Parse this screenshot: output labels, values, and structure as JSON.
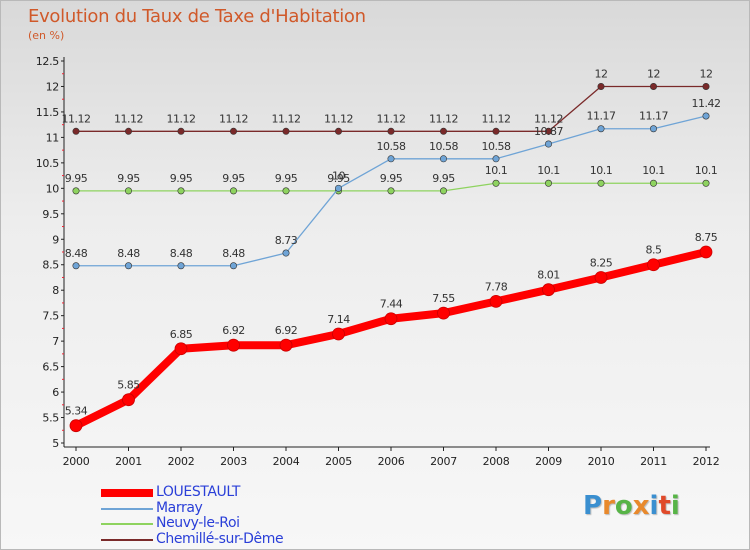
{
  "title": "Evolution du Taux de Taxe d'Habitation",
  "subtitle": "(en %)",
  "logo": {
    "text": "Proxiti",
    "colors": [
      "#3a8fd0",
      "#e8892c",
      "#57b447",
      "#e8892c",
      "#3a8fd0",
      "#e04a2a",
      "#57b447"
    ]
  },
  "chart_data": {
    "type": "line",
    "x": [
      "2000",
      "2001",
      "2002",
      "2003",
      "2004",
      "2005",
      "2006",
      "2007",
      "2008",
      "2009",
      "2010",
      "2011",
      "2012"
    ],
    "ylim": [
      5,
      12.5
    ],
    "yticks": [
      "5",
      "5.5",
      "6",
      "6.5",
      "7",
      "7.5",
      "8",
      "8.5",
      "9",
      "9.5",
      "10",
      "10.5",
      "11",
      "11.5",
      "12",
      "12.5"
    ],
    "grid": false,
    "legend_position": "bottom-left",
    "series": [
      {
        "name": "LOUESTAULT",
        "color": "#ff0000",
        "values": [
          5.34,
          5.85,
          6.85,
          6.92,
          6.92,
          7.14,
          7.44,
          7.55,
          7.78,
          8.01,
          8.25,
          8.5,
          8.75
        ],
        "labels": [
          "5.34",
          "5.85",
          "6.85",
          "6.92",
          "6.92",
          "7.14",
          "7.44",
          "7.55",
          "7.78",
          "8.01",
          "8.25",
          "8.5",
          "8.75"
        ]
      },
      {
        "name": "Marray",
        "color": "#6fa4d6",
        "values": [
          8.48,
          8.48,
          8.48,
          8.48,
          8.73,
          10,
          10.58,
          10.58,
          10.58,
          10.87,
          11.17,
          11.17,
          11.42
        ],
        "labels": [
          "8.48",
          "8.48",
          "8.48",
          "8.48",
          "8.73",
          "10",
          "10.58",
          "10.58",
          "10.58",
          "10.87",
          "11.17",
          "11.17",
          "11.42"
        ]
      },
      {
        "name": "Neuvy-le-Roi",
        "color": "#8ed35f",
        "values": [
          9.95,
          9.95,
          9.95,
          9.95,
          9.95,
          9.95,
          9.95,
          9.95,
          10.1,
          10.1,
          10.1,
          10.1,
          10.1
        ],
        "labels": [
          "9.95",
          "9.95",
          "9.95",
          "9.95",
          "9.95",
          "9.95",
          "9.95",
          "9.95",
          "10.1",
          "10.1",
          "10.1",
          "10.1",
          "10.1"
        ]
      },
      {
        "name": "Chemillé-sur-Dême",
        "color": "#7a2a2a",
        "values": [
          11.12,
          11.12,
          11.12,
          11.12,
          11.12,
          11.12,
          11.12,
          11.12,
          11.12,
          11.12,
          12,
          12,
          12
        ],
        "labels": [
          "11.12",
          "11.12",
          "11.12",
          "11.12",
          "11.12",
          "11.12",
          "11.12",
          "11.12",
          "11.12",
          "11.12",
          "12",
          "12",
          "12"
        ]
      }
    ]
  }
}
